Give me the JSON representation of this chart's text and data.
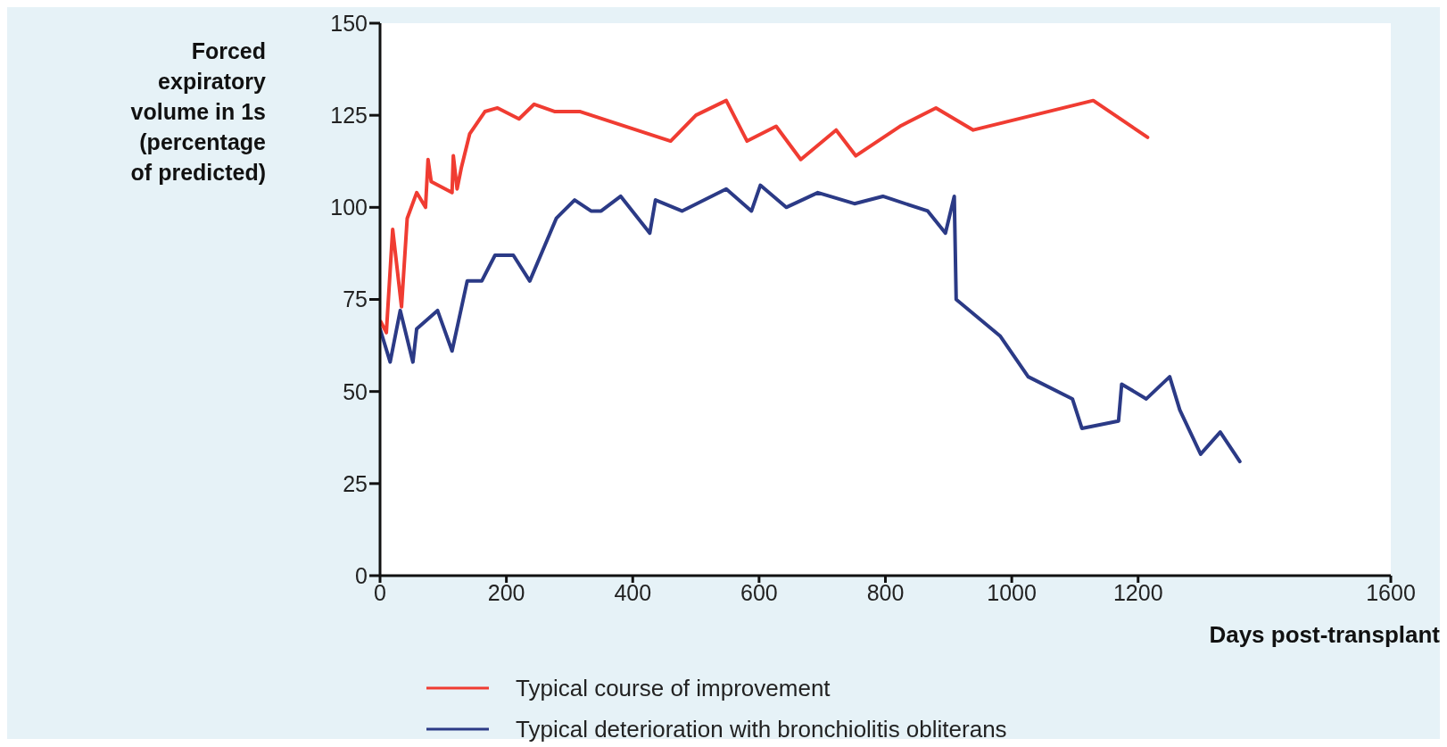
{
  "chart_data": {
    "type": "line",
    "xlabel": "Days post-transplant",
    "ylabel": "Forced expiratory volume in 1s (percentage of predicted)",
    "xlim": [
      0,
      1600
    ],
    "xticks": [
      0,
      200,
      400,
      600,
      800,
      1000,
      1200,
      1600
    ],
    "ylim": [
      0,
      150
    ],
    "yticks": [
      0,
      25,
      50,
      75,
      100,
      125,
      150
    ],
    "legend": "bottom",
    "marker": "none",
    "line_style": "solid",
    "series": [
      {
        "name": "Typical course of improvement",
        "color": "#f03c32",
        "x": [
          1,
          10,
          20,
          34,
          43,
          58,
          72,
          76,
          81,
          114,
          116,
          122,
          129,
          142,
          166,
          186,
          220,
          244,
          277,
          317,
          460,
          500,
          548,
          581,
          627,
          666,
          722,
          753,
          823,
          880,
          939,
          1129,
          1215
        ],
        "values": [
          69,
          66,
          94,
          73,
          97,
          104,
          100,
          113,
          107,
          104,
          114,
          105,
          111,
          120,
          126,
          127,
          124,
          128,
          126,
          126,
          118,
          125,
          129,
          118,
          122,
          113,
          121,
          114,
          122,
          127,
          121,
          129,
          119
        ]
      },
      {
        "name": "Typical deterioration with bronchiolitis obliterans",
        "color": "#2b3a86",
        "x": [
          0,
          16,
          32,
          52,
          58,
          91,
          114,
          138,
          161,
          182,
          211,
          237,
          279,
          308,
          334,
          350,
          381,
          427,
          436,
          478,
          548,
          588,
          602,
          643,
          693,
          751,
          796,
          867,
          895,
          909,
          912,
          982,
          1026,
          1096,
          1111,
          1169,
          1174,
          1213,
          1250,
          1266,
          1299,
          1330,
          1361
        ],
        "values": [
          67,
          58,
          72,
          58,
          67,
          72,
          61,
          80,
          80,
          87,
          87,
          80,
          97,
          102,
          99,
          99,
          103,
          93,
          102,
          99,
          105,
          99,
          106,
          100,
          104,
          101,
          103,
          99,
          93,
          103,
          75,
          65,
          54,
          48,
          40,
          42,
          52,
          48,
          54,
          45,
          33,
          39,
          31
        ]
      }
    ]
  }
}
